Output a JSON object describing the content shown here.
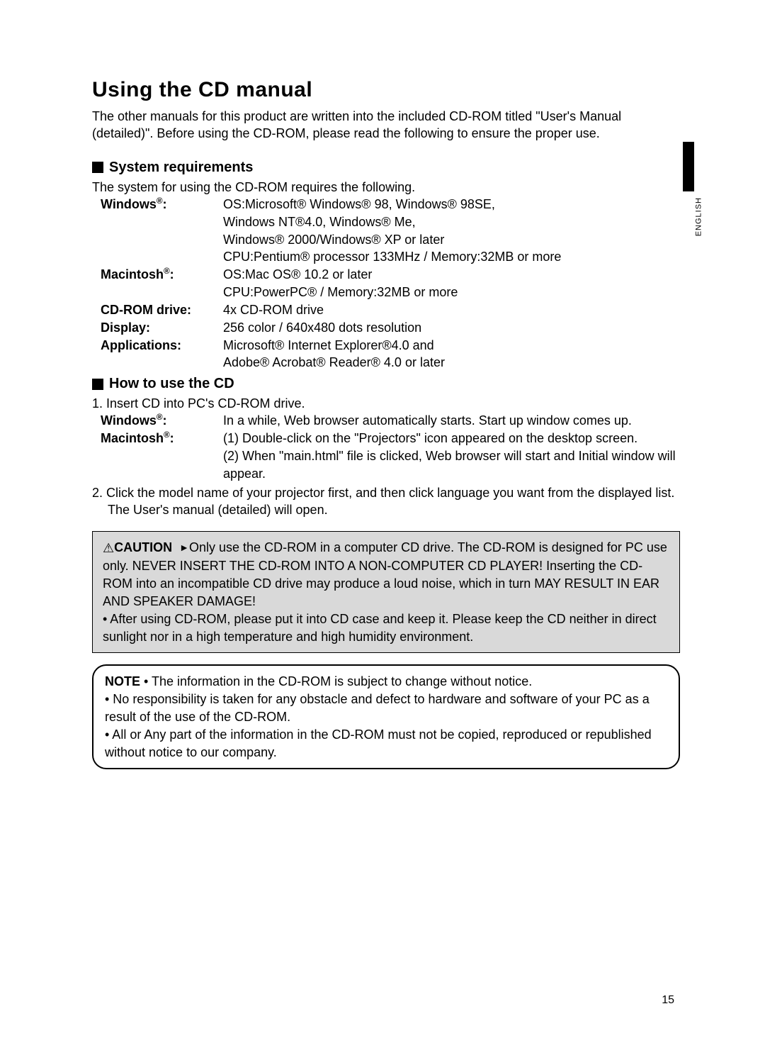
{
  "side_label": "ENGLISH",
  "title": "Using the CD manual",
  "intro": "The other manuals for this product are written into the included CD-ROM titled \"User's Manual (detailed)\". Before using the CD-ROM, please read the following to ensure the proper use.",
  "sysreq_heading": "System requirements",
  "sysreq_intro": "The system for using the CD-ROM requires the following.",
  "sysreq": {
    "windows_label": "Windows",
    "windows_lines": [
      "OS:Microsoft® Windows® 98, Windows® 98SE,",
      "Windows NT®4.0, Windows® Me,",
      "Windows® 2000/Windows® XP or later",
      "CPU:Pentium® processor 133MHz / Memory:32MB or more"
    ],
    "mac_label": "Macintosh",
    "mac_lines": [
      "OS:Mac OS® 10.2 or later",
      "CPU:PowerPC® / Memory:32MB or more"
    ],
    "cd_label": "CD-ROM drive:",
    "cd_val": "4x CD-ROM drive",
    "display_label": "Display:",
    "display_val": "256 color / 640x480 dots resolution",
    "apps_label": "Applications:",
    "apps_lines": [
      "Microsoft® Internet Explorer®4.0 and",
      "Adobe® Acrobat® Reader® 4.0 or later"
    ]
  },
  "howto_heading": "How to use the CD",
  "howto": {
    "step1": "1. Insert CD into PC's CD-ROM drive.",
    "windows_label": "Windows",
    "windows_val": "In a while, Web browser automatically starts. Start up window comes up.",
    "mac_label": "Macintosh",
    "mac_lines": [
      "(1) Double-click on the \"Projectors\" icon appeared on the desktop screen.",
      "(2) When \"main.html\" file is clicked, Web browser will start and Initial window will appear."
    ],
    "step2": "2. Click the model name of your projector first, and then click language you want from the displayed list. The User's manual (detailed) will open."
  },
  "caution_label": "CAUTION",
  "caution_body": "Only use the CD-ROM in a computer CD drive. The CD-ROM is designed for PC use only. NEVER INSERT THE CD-ROM INTO A NON-COMPUTER CD PLAYER! Inserting the CD-ROM into an incompatible CD drive may produce a loud noise, which in turn MAY RESULT IN EAR AND SPEAKER DAMAGE!",
  "caution_after": "• After using CD-ROM, please put it into CD case and keep it. Please keep the CD neither in direct sunlight nor in a high temperature and high humidity environment.",
  "note_label": "NOTE",
  "note_body": "• The information in the CD-ROM is subject to change without notice.\n• No responsibility is taken for any obstacle and defect to hardware and software of your PC as a result of the use of the CD-ROM.\n• All or Any part of the information in the CD-ROM must not be copied, reproduced or republished without notice to our company.",
  "page_number": "15",
  "colors": {
    "background": "#ffffff",
    "text": "#000000",
    "box_bg": "#d9d9d9"
  }
}
